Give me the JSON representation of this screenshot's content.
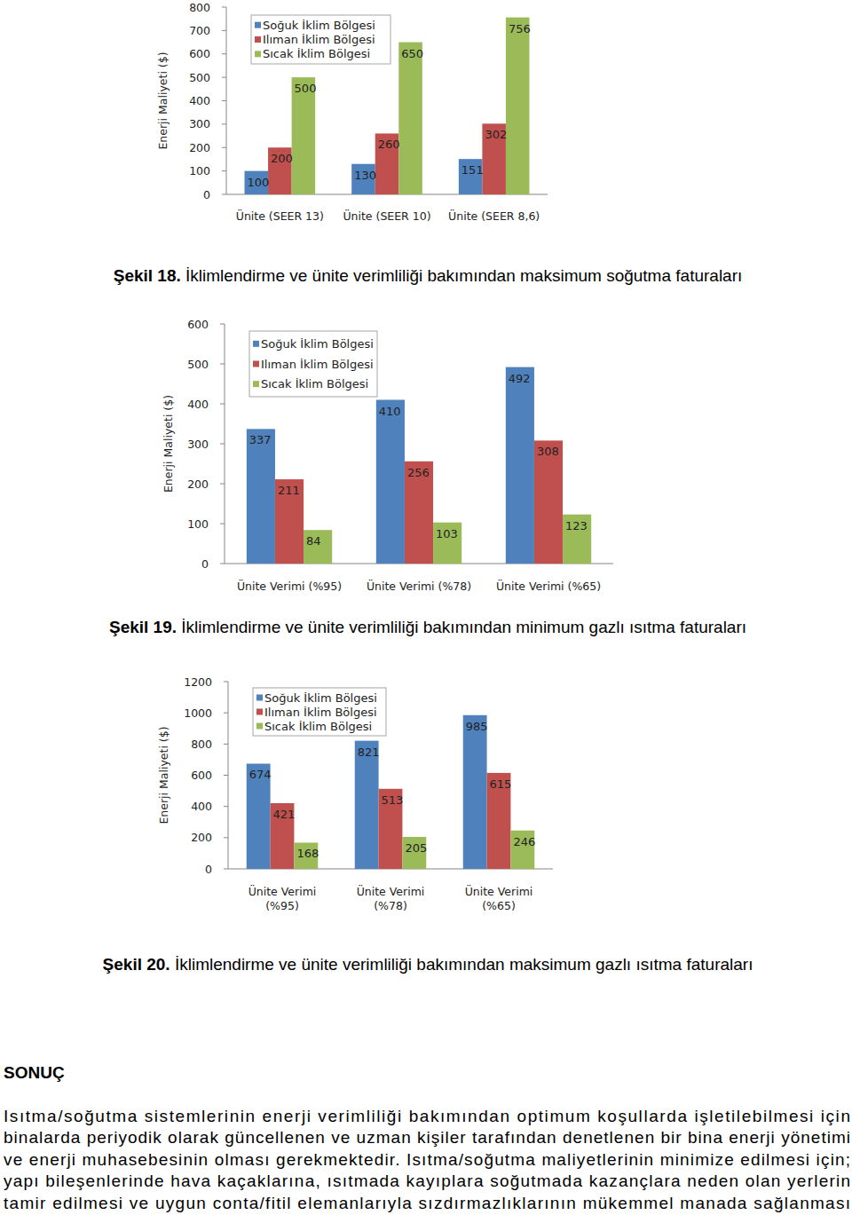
{
  "chart_data": [
    {
      "type": "bar",
      "ylabel": "Enerji Maliyeti ($)",
      "categories": [
        "Ünite (SEER 13)",
        "Ünite (SEER 10)",
        "Ünite (SEER 8,6)"
      ],
      "series": [
        {
          "name": "Soğuk İklim Bölgesi",
          "color": "#4f81bd",
          "values": [
            100,
            130,
            151
          ]
        },
        {
          "name": "Ilıman İklim Bölgesi",
          "color": "#c0504d",
          "values": [
            200,
            260,
            302
          ]
        },
        {
          "name": "Sıcak İklim Bölgesi",
          "color": "#9bbb59",
          "values": [
            500,
            650,
            756
          ]
        }
      ],
      "ylim": [
        0,
        800
      ],
      "yticks": [
        0,
        100,
        200,
        300,
        400,
        500,
        600,
        700,
        800
      ],
      "grid": false,
      "legend": "upper left",
      "data_labels": true
    },
    {
      "type": "bar",
      "ylabel": "Enerji Maliyeti ($)",
      "categories": [
        "Ünite Verimi (%95)",
        "Ünite Verimi (%78)",
        "Ünite Verimi (%65)"
      ],
      "series": [
        {
          "name": "Soğuk İklim Bölgesi",
          "color": "#4f81bd",
          "values": [
            337,
            410,
            492
          ]
        },
        {
          "name": "Ilıman İklim Bölgesi",
          "color": "#c0504d",
          "values": [
            211,
            256,
            308
          ]
        },
        {
          "name": "Sıcak İklim Bölgesi",
          "color": "#9bbb59",
          "values": [
            84,
            103,
            123
          ]
        }
      ],
      "ylim": [
        0,
        600
      ],
      "yticks": [
        0,
        100,
        200,
        300,
        400,
        500,
        600
      ],
      "grid": false,
      "legend": "upper left",
      "data_labels": true
    },
    {
      "type": "bar",
      "ylabel": "Enerji Maliyeti ($)",
      "categories": [
        "Ünite Verimi\n(%95)",
        "Ünite Verimi\n(%78)",
        "Ünite Verimi\n(%65)"
      ],
      "series": [
        {
          "name": "Soğuk İklim Bölgesi",
          "color": "#4f81bd",
          "values": [
            674,
            821,
            985
          ]
        },
        {
          "name": "Ilıman İklim Bölgesi",
          "color": "#c0504d",
          "values": [
            421,
            513,
            615
          ]
        },
        {
          "name": "Sıcak İklim Bölgesi",
          "color": "#9bbb59",
          "values": [
            168,
            205,
            246
          ]
        }
      ],
      "ylim": [
        0,
        1200
      ],
      "yticks": [
        0,
        200,
        400,
        600,
        800,
        1000,
        1200
      ],
      "grid": false,
      "legend": "upper left",
      "data_labels": true
    }
  ],
  "captions": [
    {
      "label": "Şekil 18.",
      "text": "İklimlendirme ve ünite verimliliği bakımından maksimum soğutma faturaları"
    },
    {
      "label": "Şekil 19.",
      "text": "İklimlendirme ve ünite verimliliği bakımından minimum gazlı ısıtma faturaları"
    },
    {
      "label": "Şekil 20.",
      "text": "İklimlendirme ve ünite verimliliği bakımından maksimum gazlı ısıtma faturaları"
    }
  ],
  "conclusion": {
    "heading": "SONUÇ",
    "lines": [
      "Isıtma/soğutma sistemlerinin enerji verimliliği bakımından optimum koşullarda işletilebilmesi için",
      "binalarda periyodik olarak güncellenen ve uzman kişiler tarafından denetlenen bir bina enerji yönetimi",
      "ve enerji muhasebesinin olması gerekmektedir. Isıtma/soğutma maliyetlerinin minimize edilmesi için;",
      "yapı bileşenlerinde hava kaçaklarına, ısıtmada kayıplara soğutmada kazançlara neden olan yerlerin",
      "tamir edilmesi ve uygun conta/fitil elemanlarıyla sızdırmazlıklarının mükemmel manada sağlanması"
    ]
  }
}
